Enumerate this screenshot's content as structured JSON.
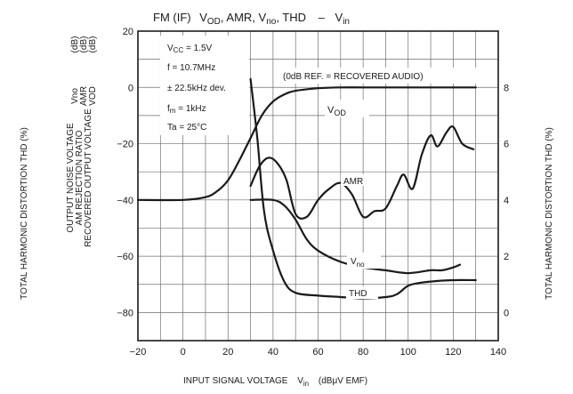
{
  "chart_data": {
    "type": "line",
    "title": "FM (IF) V_OD, AMR, V_no, THD – V_in",
    "title_parts": {
      "prefix": "FM (IF)",
      "vod_v": "V",
      "vod_sub": "OD",
      "amr": ", AMR, ",
      "vno_v": "V",
      "vno_sub": "no",
      "thd": ", THD",
      "dash": "–",
      "vin_v": "V",
      "vin_sub": "in"
    },
    "xlabel": {
      "text": "INPUT SIGNAL VOLTAGE",
      "sym_v": "V",
      "sym_sub": "in",
      "unit": "(dBμV EMF)"
    },
    "ylabel_left": {
      "outer": "TOTAL HARMONIC DISTORTION   THD   (%)",
      "line1": "OUTPUT NOISE VOLTAGE",
      "line2": "AM REJECTION RATIO",
      "line3": "RECOVERED OUTPUT VOLTAGE",
      "sym1": "Vno",
      "sym2": "AMR",
      "sym3": "VOD",
      "unit": "(dB)"
    },
    "ylabel_right": "TOTAL HARMONIC DISTORTION   THD   (%)",
    "xlim": [
      -20,
      140
    ],
    "ylim": [
      -90,
      20
    ],
    "x_ticks": [
      "−20",
      "0",
      "20",
      "40",
      "60",
      "80",
      "100",
      "120",
      "140"
    ],
    "y_ticks": [
      "20",
      "0",
      "−20",
      "−40",
      "−60",
      "−80"
    ],
    "y2lim": [
      -1,
      10
    ],
    "y2_ticks": [
      "8",
      "6",
      "4",
      "2",
      "0"
    ],
    "grid": true,
    "conditions": [
      "V_CC = 1.5V",
      "f = 10.7MHz",
      "± 22.5kHz dev.",
      "f_m = 1kHz",
      "Ta = 25°C"
    ],
    "annotation": "(0dB REF. = RECOVERED AUDIO)",
    "series": [
      {
        "name": "V_OD",
        "label_v": "V",
        "label_sub": "OD",
        "axis": "left",
        "x": [
          -20,
          0,
          10,
          15,
          20,
          25,
          30,
          35,
          40,
          45,
          50,
          60,
          70,
          80,
          90,
          100,
          110,
          120,
          130
        ],
        "y": [
          -40,
          -40,
          -39,
          -37,
          -33,
          -26,
          -18,
          -10,
          -5,
          -2.5,
          -1.2,
          -0.3,
          0,
          0,
          0,
          0,
          0,
          0,
          0
        ]
      },
      {
        "name": "AMR",
        "axis": "left",
        "x": [
          30,
          34,
          38,
          42,
          46,
          50,
          55,
          60,
          65,
          70,
          75,
          80,
          85,
          90,
          95,
          98,
          102,
          106,
          110,
          113,
          117,
          120,
          124,
          129
        ],
        "y": [
          -35,
          -28,
          -25,
          -27,
          -33,
          -45,
          -46,
          -40,
          -36,
          -34,
          -38,
          -46,
          -44,
          -43,
          -35,
          -31,
          -36,
          -24,
          -17,
          -21,
          -16,
          -14,
          -20,
          -22
        ]
      },
      {
        "name": "V_no",
        "label_v": "V",
        "label_sub": "no",
        "axis": "left",
        "x": [
          30,
          40,
          45,
          50,
          55,
          60,
          70,
          80,
          90,
          100,
          110,
          115,
          120,
          123
        ],
        "y": [
          -40,
          -40,
          -42,
          -47,
          -54,
          -58,
          -62,
          -64,
          -65,
          -66,
          -65,
          -65,
          -64,
          -63
        ]
      },
      {
        "name": "THD",
        "axis": "right",
        "x": [
          30,
          33,
          36,
          40,
          45,
          50,
          60,
          70,
          80,
          90,
          95,
          100,
          105,
          110,
          120,
          130
        ],
        "y": [
          8.3,
          6.2,
          3.6,
          2.2,
          1.1,
          0.7,
          0.6,
          0.55,
          0.5,
          0.55,
          0.65,
          0.95,
          1.05,
          1.1,
          1.15,
          1.15
        ]
      }
    ]
  }
}
